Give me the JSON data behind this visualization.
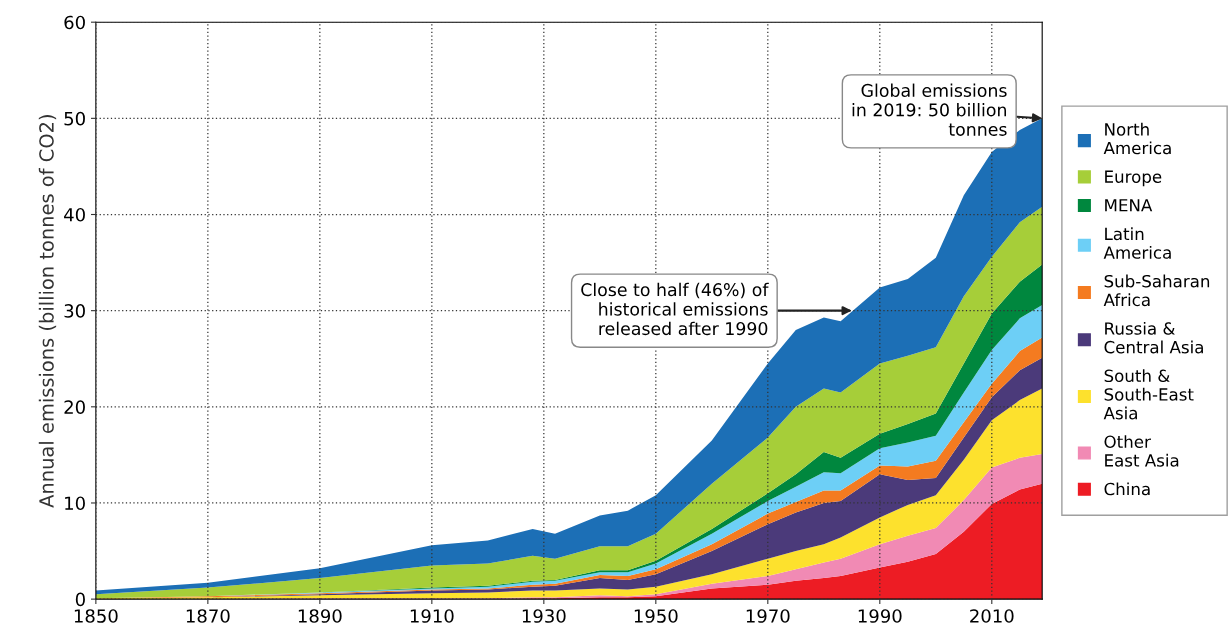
{
  "chart_data": {
    "type": "area",
    "stacked": true,
    "ylabel": "Annual emissions (billion tonnes of CO2)",
    "x": [
      1850,
      1870,
      1890,
      1910,
      1920,
      1928,
      1932,
      1940,
      1945,
      1950,
      1960,
      1970,
      1975,
      1980,
      1983,
      1990,
      1995,
      2000,
      2005,
      2010,
      2015,
      2019
    ],
    "series": [
      {
        "name": "China",
        "color": "#ed1c24",
        "values": [
          0,
          0,
          0,
          0,
          0,
          0.1,
          0.1,
          0.2,
          0.2,
          0.3,
          1.1,
          1.5,
          1.9,
          2.2,
          2.4,
          3.3,
          3.9,
          4.7,
          7.0,
          9.9,
          11.4,
          12.0
        ]
      },
      {
        "name": "Other\nEast Asia",
        "color": "#f18ab4",
        "values": [
          0,
          0,
          0.1,
          0.1,
          0.1,
          0.1,
          0.1,
          0.2,
          0.1,
          0.2,
          0.5,
          0.9,
          1.2,
          1.6,
          1.8,
          2.4,
          2.7,
          2.7,
          3.3,
          3.8,
          3.3,
          3.1
        ]
      },
      {
        "name": "South &\nSouth-East\nAsia",
        "color": "#fde12d",
        "values": [
          0.1,
          0.2,
          0.3,
          0.5,
          0.6,
          0.7,
          0.7,
          0.7,
          0.7,
          0.8,
          1.0,
          1.8,
          1.9,
          1.9,
          2.2,
          2.8,
          3.2,
          3.4,
          4.2,
          4.9,
          6.0,
          6.8
        ]
      },
      {
        "name": "Russia &\nCentral Asia",
        "color": "#4b3a7a",
        "values": [
          0,
          0,
          0.1,
          0.3,
          0.3,
          0.4,
          0.5,
          1.1,
          1.0,
          1.3,
          2.4,
          3.6,
          4.0,
          4.3,
          3.8,
          4.5,
          2.6,
          1.8,
          2.3,
          2.4,
          3.1,
          3.2
        ]
      },
      {
        "name": "Sub-Saharan\nAfrica",
        "color": "#f47b20",
        "values": [
          0,
          0.1,
          0.1,
          0.1,
          0.1,
          0.2,
          0.2,
          0.3,
          0.4,
          0.5,
          0.7,
          1.1,
          1.1,
          1.3,
          1.1,
          0.9,
          1.4,
          1.8,
          1.6,
          1.4,
          2.0,
          2.1
        ]
      },
      {
        "name": "Latin\nAmerica",
        "color": "#6dcff6",
        "values": [
          0,
          0,
          0.1,
          0.1,
          0.2,
          0.3,
          0.3,
          0.3,
          0.4,
          0.6,
          1.1,
          1.3,
          1.6,
          1.9,
          1.8,
          1.8,
          2.5,
          2.6,
          3.1,
          3.5,
          3.4,
          3.4
        ]
      },
      {
        "name": "MENA",
        "color": "#00873e",
        "values": [
          0,
          0,
          0,
          0.1,
          0.1,
          0.1,
          0.1,
          0.2,
          0.2,
          0.3,
          0.5,
          0.8,
          1.3,
          2.1,
          1.6,
          1.5,
          1.9,
          2.3,
          3.0,
          3.8,
          3.8,
          4.2
        ]
      },
      {
        "name": "Europe",
        "color": "#a6ce39",
        "values": [
          0.4,
          0.9,
          1.5,
          2.3,
          2.3,
          2.6,
          2.2,
          2.5,
          2.5,
          2.8,
          4.7,
          5.8,
          7.0,
          6.6,
          6.8,
          7.3,
          7.1,
          6.9,
          7.0,
          5.9,
          6.2,
          6.0
        ]
      },
      {
        "name": "North\nAmerica",
        "color": "#1c6fb6",
        "values": [
          0.4,
          0.5,
          1.0,
          2.1,
          2.4,
          2.8,
          2.6,
          3.2,
          3.7,
          4.0,
          4.5,
          7.7,
          8.0,
          7.4,
          7.4,
          7.9,
          8.0,
          9.3,
          10.5,
          10.9,
          9.6,
          9.2
        ]
      }
    ],
    "xlim": [
      1850,
      2019
    ],
    "xticks": [
      1850,
      1870,
      1890,
      1910,
      1930,
      1950,
      1970,
      1990,
      2010
    ],
    "ylim": [
      0,
      60
    ],
    "yticks": [
      0,
      10,
      20,
      30,
      40,
      50,
      60
    ],
    "grid": true,
    "legend": "right",
    "annotations": [
      {
        "text": "Close to half (46%) of\nhistorical emissions\nreleased after 1990",
        "x": 1985,
        "y": 30
      },
      {
        "text": "Global emissions\nin 2019: 50 billion\ntonnes",
        "x": 2019,
        "y": 50
      }
    ]
  }
}
